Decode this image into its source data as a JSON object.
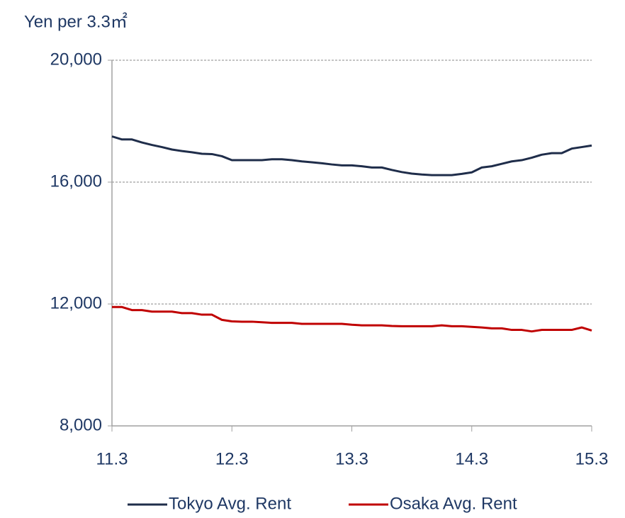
{
  "chart_data": {
    "type": "line",
    "title": "Yen per 3.3㎡",
    "categories": [
      "11.3",
      null,
      null,
      null,
      null,
      null,
      null,
      null,
      null,
      null,
      null,
      null,
      "12.3",
      null,
      null,
      null,
      null,
      null,
      null,
      null,
      null,
      null,
      null,
      null,
      "13.3",
      null,
      null,
      null,
      null,
      null,
      null,
      null,
      null,
      null,
      null,
      null,
      "14.3",
      null,
      null,
      null,
      null,
      null,
      null,
      null,
      null,
      null,
      null,
      null,
      "15.3"
    ],
    "series": [
      {
        "name": "Tokyo Avg. Rent",
        "color": "#1f2d4a",
        "values": [
          17500,
          17400,
          17400,
          17300,
          17220,
          17150,
          17070,
          17020,
          16980,
          16930,
          16920,
          16850,
          16720,
          16720,
          16720,
          16720,
          16750,
          16750,
          16720,
          16680,
          16650,
          16620,
          16580,
          16550,
          16550,
          16520,
          16480,
          16480,
          16400,
          16330,
          16280,
          16250,
          16230,
          16230,
          16230,
          16270,
          16320,
          16480,
          16520,
          16600,
          16680,
          16720,
          16800,
          16900,
          16950,
          16950,
          17100,
          17150,
          17200
        ]
      },
      {
        "name": "Osaka Avg. Rent",
        "color": "#c00000",
        "values": [
          11900,
          11900,
          11800,
          11800,
          11750,
          11750,
          11750,
          11700,
          11700,
          11650,
          11650,
          11480,
          11430,
          11420,
          11420,
          11400,
          11380,
          11380,
          11380,
          11350,
          11350,
          11350,
          11350,
          11350,
          11320,
          11300,
          11300,
          11300,
          11280,
          11270,
          11270,
          11270,
          11270,
          11300,
          11270,
          11270,
          11250,
          11230,
          11200,
          11200,
          11150,
          11150,
          11100,
          11150,
          11150,
          11150,
          11150,
          11230,
          11130
        ]
      }
    ],
    "ylim": [
      8000,
      20000
    ],
    "yticks": [
      {
        "value": 8000,
        "label": "8,000"
      },
      {
        "value": 12000,
        "label": "12,000"
      },
      {
        "value": 16000,
        "label": "16,000"
      },
      {
        "value": 20000,
        "label": "20,000"
      }
    ],
    "grid": true,
    "legend": "bottom"
  }
}
